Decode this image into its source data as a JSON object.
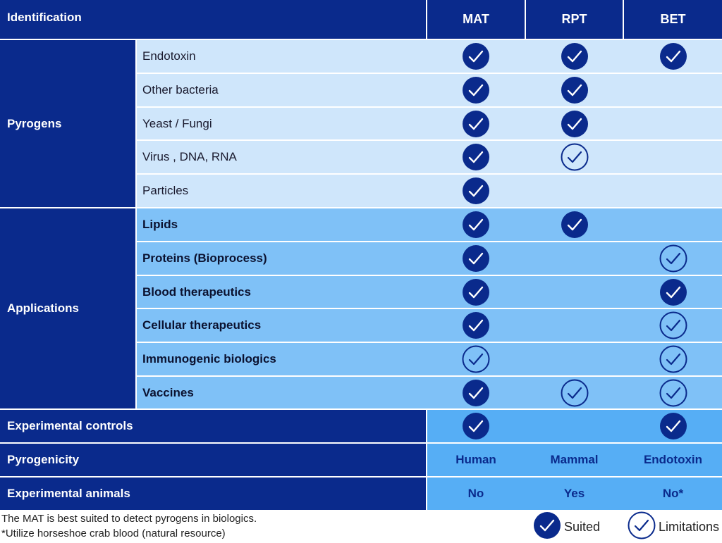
{
  "header": {
    "title": "Identification",
    "columns": [
      "MAT",
      "RPT",
      "BET"
    ]
  },
  "groups": [
    {
      "label": "Pyrogens",
      "rows": [
        {
          "label": "Endotoxin",
          "marks": [
            "suited",
            "suited",
            "suited"
          ]
        },
        {
          "label": "Other bacteria",
          "marks": [
            "suited",
            "suited",
            ""
          ]
        },
        {
          "label": "Yeast / Fungi",
          "marks": [
            "suited",
            "suited",
            ""
          ]
        },
        {
          "label": "Virus , DNA, RNA",
          "marks": [
            "suited",
            "limited",
            ""
          ]
        },
        {
          "label": "Particles",
          "marks": [
            "suited",
            "",
            ""
          ]
        }
      ]
    },
    {
      "label": "Applications",
      "rows": [
        {
          "label": "Lipids",
          "marks": [
            "suited",
            "suited",
            ""
          ]
        },
        {
          "label": "Proteins (Bioprocess)",
          "marks": [
            "suited",
            "",
            "limited"
          ]
        },
        {
          "label": "Blood therapeutics",
          "marks": [
            "suited",
            "",
            "suited"
          ]
        },
        {
          "label": "Cellular therapeutics",
          "marks": [
            "suited",
            "",
            "limited"
          ]
        },
        {
          "label": "Immunogenic biologics",
          "marks": [
            "limited",
            "",
            "limited"
          ]
        },
        {
          "label": "Vaccines",
          "marks": [
            "suited",
            "limited",
            "limited"
          ]
        }
      ]
    }
  ],
  "summary_rows": [
    {
      "label": "Experimental controls",
      "marks": [
        "suited",
        "",
        "suited"
      ]
    },
    {
      "label": "Pyrogenicity",
      "values": [
        "Human",
        "Mammal",
        "Endotoxin"
      ]
    },
    {
      "label": "Experimental animals",
      "values": [
        "No",
        "Yes",
        "No*"
      ]
    }
  ],
  "footnotes": [
    "The MAT is best suited to detect pyrogens in biologics.",
    "*Utilize horseshoe crab blood (natural resource)"
  ],
  "legend": {
    "suited": "Suited",
    "limited": "Limitations"
  },
  "colors": {
    "navy": "#0a2a8c",
    "pyrogens_bg": "#cfe6fb",
    "applications_bg": "#7fc1f7",
    "summary_bg": "#56aef5"
  },
  "icons": {
    "suited": "filled-check-circle-icon",
    "limited": "outline-check-circle-icon"
  }
}
